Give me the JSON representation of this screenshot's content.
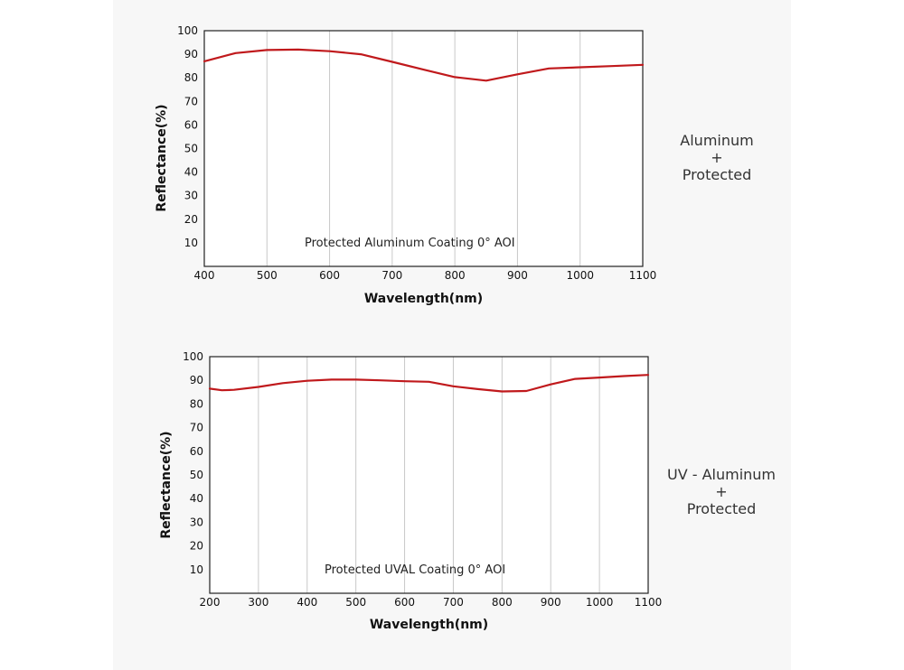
{
  "colors": {
    "curve": "#c0191c",
    "grid": "#c8c8c8",
    "frame": "#222222",
    "panel": "#f7f7f7"
  },
  "side_labels": [
    {
      "line1": "Aluminum",
      "line2": "+",
      "line3": "Protected"
    },
    {
      "line1": "UV - Aluminum",
      "line2": "+",
      "line3": "Protected"
    }
  ],
  "chart_data": [
    {
      "type": "line",
      "annotation": "Protected Aluminum Coating  0°  AOI",
      "xlabel": "Wavelength(nm)",
      "ylabel": "Reflectance(%)",
      "xlim": [
        400,
        1100
      ],
      "ylim": [
        0,
        100
      ],
      "xticks": [
        "400",
        "500",
        "600",
        "700",
        "800",
        "900",
        "1000",
        "1100"
      ],
      "yticks": [
        "10",
        "20",
        "30",
        "40",
        "50",
        "60",
        "70",
        "80",
        "90",
        "100"
      ],
      "grid": "vertical",
      "series": [
        {
          "x": [
            400,
            450,
            500,
            550,
            600,
            650,
            700,
            750,
            800,
            850,
            900,
            950,
            1000,
            1050,
            1100
          ],
          "y": [
            87,
            90.5,
            91.8,
            92,
            91.3,
            90,
            86.8,
            83.5,
            80.3,
            78.8,
            81.5,
            84,
            84.5,
            85,
            85.5
          ]
        }
      ]
    },
    {
      "type": "line",
      "annotation": "Protected UVAL Coating  0°  AOI",
      "xlabel": "Wavelength(nm)",
      "ylabel": "Reflectance(%)",
      "xlim": [
        200,
        1100
      ],
      "ylim": [
        0,
        100
      ],
      "xticks": [
        "200",
        "300",
        "400",
        "500",
        "600",
        "700",
        "800",
        "900",
        "1000",
        "1100"
      ],
      "yticks": [
        "10",
        "20",
        "30",
        "40",
        "50",
        "60",
        "70",
        "80",
        "90",
        "100"
      ],
      "grid": "vertical",
      "series": [
        {
          "x": [
            200,
            225,
            250,
            300,
            350,
            400,
            450,
            500,
            550,
            600,
            650,
            700,
            750,
            800,
            850,
            900,
            950,
            1000,
            1050,
            1100
          ],
          "y": [
            86.5,
            85.8,
            86,
            87.2,
            88.8,
            89.8,
            90.3,
            90.3,
            90,
            89.6,
            89.4,
            87.5,
            86.3,
            85.3,
            85.5,
            88.3,
            90.6,
            91.2,
            91.8,
            92.3
          ]
        }
      ]
    }
  ]
}
